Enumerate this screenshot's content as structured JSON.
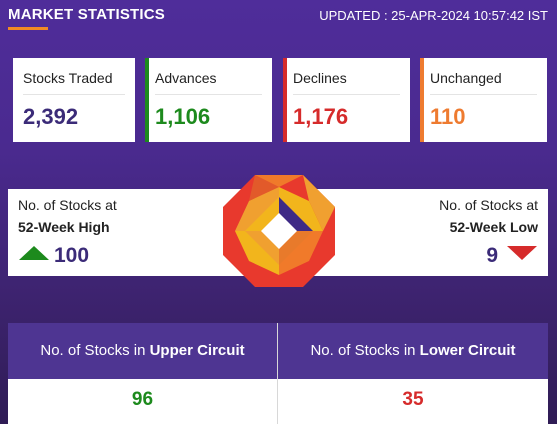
{
  "header": {
    "title": "MARKET STATISTICS",
    "updated": "UPDATED : 25-APR-2024 10:57:42 IST"
  },
  "stats": {
    "traded": {
      "label": "Stocks Traded",
      "value": "2,392"
    },
    "advances": {
      "label": "Advances",
      "value": "1,106"
    },
    "declines": {
      "label": "Declines",
      "value": "1,176"
    },
    "unchanged": {
      "label": "Unchanged",
      "value": "110"
    }
  },
  "week52": {
    "high": {
      "label_a": "No. of Stocks at",
      "label_b": "52-Week High",
      "value": "100"
    },
    "low": {
      "label_a": "No. of Stocks at",
      "label_b": "52-Week Low",
      "value": "9"
    }
  },
  "circuit": {
    "upper": {
      "prefix": "No. of Stocks in ",
      "emph": "Upper Circuit",
      "value": "96"
    },
    "lower": {
      "prefix": "No. of Stocks in ",
      "emph": "Lower Circuit",
      "value": "35"
    }
  },
  "colors": {
    "advances": "#1d8a1d",
    "declines": "#d62b2b",
    "unchanged": "#ee7b30",
    "traded": "#3b2b78",
    "accent": "#f08a24",
    "panel_header": "#4e3592"
  },
  "icons": {
    "high": "triangle-up-icon",
    "low": "triangle-down-icon",
    "logo": "octagon-logo"
  }
}
